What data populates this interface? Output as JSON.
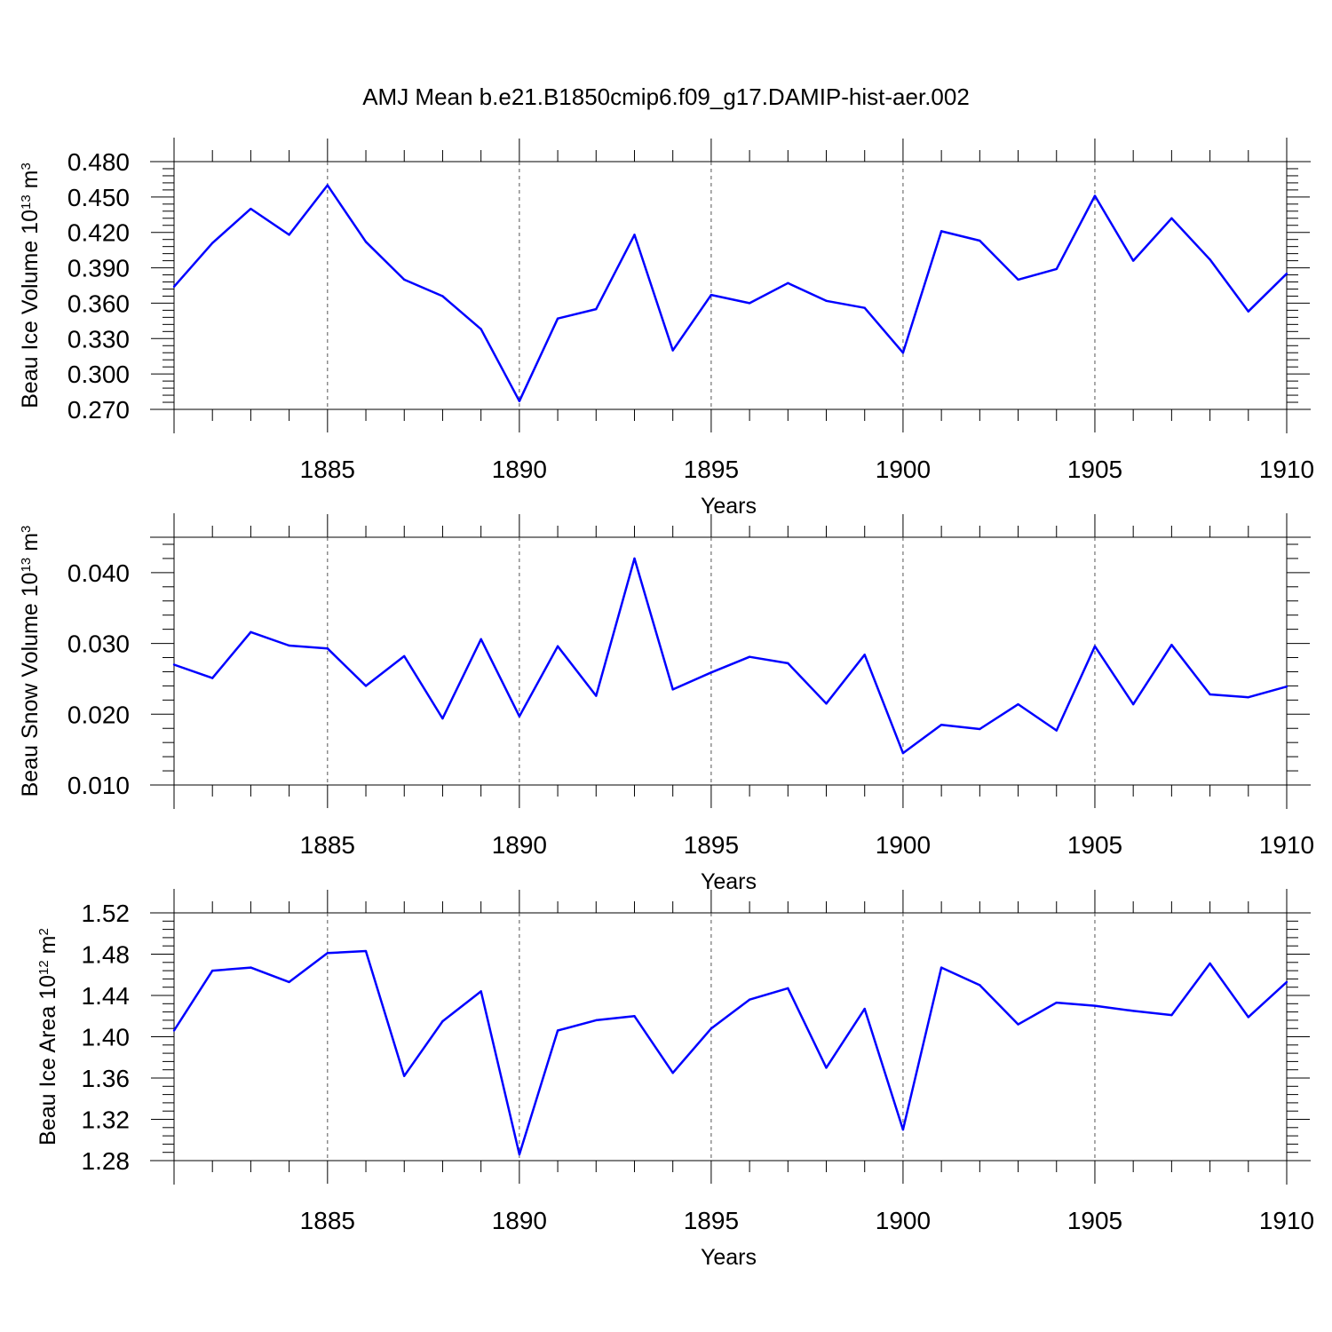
{
  "title": "AMJ Mean b.e21.B1850cmip6.f09_g17.DAMIP-hist-aer.002",
  "colors": {
    "series": "#0000ff",
    "axis": "#000000",
    "grid": "#555555",
    "background": "#ffffff"
  },
  "chart_data": [
    {
      "type": "line",
      "ylabel": {
        "text": "Beau Ice Volume 10",
        "exponent": "13",
        "unit": " m",
        "unit_exponent": "3"
      },
      "xlabel": "Years",
      "xlim": [
        1881,
        1910
      ],
      "ylim": [
        0.27,
        0.48
      ],
      "yticks": [
        "0.270",
        "0.300",
        "0.330",
        "0.360",
        "0.390",
        "0.420",
        "0.450",
        "0.480"
      ],
      "xticks": [
        "1885",
        "1890",
        "1895",
        "1900",
        "1905",
        "1910"
      ],
      "grid": "vertical dashed at major x ticks",
      "x": [
        1881,
        1882,
        1883,
        1884,
        1885,
        1886,
        1887,
        1888,
        1889,
        1890,
        1891,
        1892,
        1893,
        1894,
        1895,
        1896,
        1897,
        1898,
        1899,
        1900,
        1901,
        1902,
        1903,
        1904,
        1905,
        1906,
        1907,
        1908,
        1909,
        1910
      ],
      "values": [
        0.374,
        0.411,
        0.44,
        0.418,
        0.46,
        0.412,
        0.38,
        0.366,
        0.338,
        0.277,
        0.347,
        0.355,
        0.418,
        0.32,
        0.367,
        0.36,
        0.377,
        0.362,
        0.356,
        0.318,
        0.421,
        0.413,
        0.38,
        0.389,
        0.451,
        0.396,
        0.432,
        0.397,
        0.353,
        0.385
      ]
    },
    {
      "type": "line",
      "ylabel": {
        "text": "Beau Snow Volume 10",
        "exponent": "13",
        "unit": " m",
        "unit_exponent": "3"
      },
      "xlabel": "Years",
      "xlim": [
        1881,
        1910
      ],
      "ylim": [
        0.01,
        0.045
      ],
      "yticks": [
        "0.010",
        "0.020",
        "0.030",
        "0.040"
      ],
      "xticks": [
        "1885",
        "1890",
        "1895",
        "1900",
        "1905",
        "1910"
      ],
      "grid": "vertical dashed at major x ticks",
      "x": [
        1881,
        1882,
        1883,
        1884,
        1885,
        1886,
        1887,
        1888,
        1889,
        1890,
        1891,
        1892,
        1893,
        1894,
        1895,
        1896,
        1897,
        1898,
        1899,
        1900,
        1901,
        1902,
        1903,
        1904,
        1905,
        1906,
        1907,
        1908,
        1909,
        1910
      ],
      "values": [
        0.027,
        0.0251,
        0.0316,
        0.0297,
        0.0293,
        0.024,
        0.0282,
        0.0194,
        0.0306,
        0.0197,
        0.0296,
        0.0226,
        0.042,
        0.0235,
        0.0259,
        0.0281,
        0.0272,
        0.0215,
        0.0284,
        0.0145,
        0.0185,
        0.0179,
        0.0214,
        0.0177,
        0.0296,
        0.0214,
        0.0298,
        0.0228,
        0.0224,
        0.0239
      ]
    },
    {
      "type": "line",
      "ylabel": {
        "text": "Beau Ice Area 10",
        "exponent": "12",
        "unit": " m",
        "unit_exponent": "2"
      },
      "xlabel": "Years",
      "xlim": [
        1881,
        1910
      ],
      "ylim": [
        1.28,
        1.52
      ],
      "yticks": [
        "1.28",
        "1.32",
        "1.36",
        "1.40",
        "1.44",
        "1.48",
        "1.52"
      ],
      "xticks": [
        "1885",
        "1890",
        "1895",
        "1900",
        "1905",
        "1910"
      ],
      "grid": "vertical dashed at major x ticks",
      "x": [
        1881,
        1882,
        1883,
        1884,
        1885,
        1886,
        1887,
        1888,
        1889,
        1890,
        1891,
        1892,
        1893,
        1894,
        1895,
        1896,
        1897,
        1898,
        1899,
        1900,
        1901,
        1902,
        1903,
        1904,
        1905,
        1906,
        1907,
        1908,
        1909,
        1910
      ],
      "values": [
        1.406,
        1.464,
        1.467,
        1.453,
        1.481,
        1.483,
        1.362,
        1.415,
        1.444,
        1.286,
        1.406,
        1.416,
        1.42,
        1.365,
        1.408,
        1.436,
        1.447,
        1.37,
        1.427,
        1.31,
        1.467,
        1.45,
        1.412,
        1.433,
        1.43,
        1.425,
        1.421,
        1.471,
        1.419,
        1.453
      ]
    }
  ]
}
